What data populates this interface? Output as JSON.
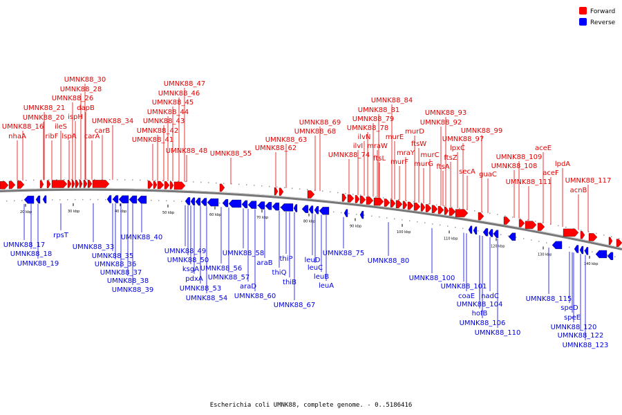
{
  "legend": {
    "forward": {
      "label": "Forward",
      "color": "#ff0000"
    },
    "reverse": {
      "label": "Reverse",
      "color": "#0000ff"
    }
  },
  "caption": "Escherichia coli UMNK88, complete genome. - 0..5186416",
  "ticks": [
    "20 kbp",
    "30 kbp",
    "40 kbp",
    "50 kbp",
    "60 kbp",
    "70 kbp",
    "80 kbp",
    "90 kbp",
    "100 kbp",
    "110 kbp",
    "120 kbp",
    "130 kbp",
    "140 kbp"
  ],
  "forward_labels": [
    "nhaA",
    "UMNK88_16",
    "UMNK88_20",
    "UMNK88_21",
    "ribF",
    "ileS",
    "lspA",
    "ispH",
    "dapB",
    "UMNK88_26",
    "UMNK88_28",
    "UMNK88_30",
    "carA",
    "carB",
    "UMNK88_34",
    "UMNK88_41",
    "UMNK88_42",
    "UMNK88_43",
    "UMNK88_44",
    "UMNK88_45",
    "UMNK88_46",
    "UMNK88_47",
    "UMNK88_48",
    "UMNK88_55",
    "UMNK88_62",
    "UMNK88_63",
    "UMNK88_68",
    "UMNK88_69",
    "UMNK88_74",
    "ilvI",
    "ilvN",
    "UMNK88_78",
    "UMNK88_79",
    "UMNK88_81",
    "UMNK88_84",
    "mraW",
    "ftsL",
    "murE",
    "murF",
    "mraY",
    "murD",
    "ftsW",
    "murG",
    "murC",
    "ftsA",
    "ftsZ",
    "lpxC",
    "UMNK88_92",
    "UMNK88_93",
    "UMNK88_97",
    "UMNK88_99",
    "secA",
    "guaC",
    "UMNK88_108",
    "UMNK88_109",
    "UMNK88_111",
    "aceE",
    "aceF",
    "lpdA",
    "acnB",
    "UMNK88_117"
  ],
  "reverse_labels": [
    "UMNK88_17",
    "UMNK88_18",
    "UMNK88_19",
    "rpsT",
    "UMNK88_33",
    "UMNK88_35",
    "UMNK88_36",
    "UMNK88_37",
    "UMNK88_38",
    "UMNK88_39",
    "UMNK88_40",
    "UMNK88_49",
    "UMNK88_50",
    "ksgA",
    "pdxA",
    "UMNK88_53",
    "UMNK88_54",
    "UMNK88_56",
    "UMNK88_57",
    "UMNK88_58",
    "araB",
    "araD",
    "UMNK88_60",
    "thiP",
    "thiQ",
    "thiB",
    "UMNK88_67",
    "leuD",
    "leuC",
    "leuB",
    "leuA",
    "UMNK88_75",
    "UMNK88_80",
    "UMNK88_100",
    "UMNK88_101",
    "coaE",
    "UMNK88_104",
    "hofB",
    "nadC",
    "UMNK88_106",
    "UMNK88_110",
    "UMNK88_115",
    "speD",
    "speE",
    "UMNK88_120",
    "UMNK88_122",
    "UMNK88_123"
  ]
}
